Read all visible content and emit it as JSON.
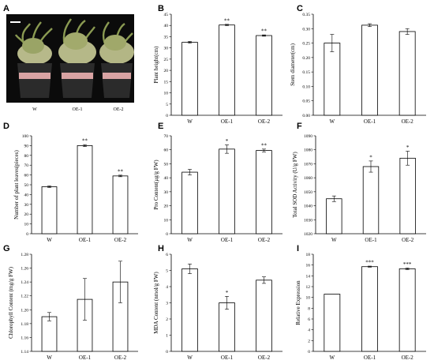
{
  "photo_panel": {
    "label": "A",
    "pots": [
      "W",
      "OE-1",
      "OE-2"
    ]
  },
  "chart_data": [
    {
      "panel": "B",
      "type": "bar",
      "categories": [
        "W",
        "OE-1",
        "OE-2"
      ],
      "values": [
        32.5,
        40.2,
        35.5
      ],
      "errors": [
        0.4,
        0.3,
        0.3
      ],
      "annotations": [
        "",
        "**",
        "**"
      ],
      "ylabel": "Plant height(cm)",
      "ylim": [
        0,
        45
      ],
      "yticks": [
        0,
        5,
        10,
        15,
        20,
        25,
        30,
        35,
        40,
        45
      ],
      "tick_decimals": 0
    },
    {
      "panel": "C",
      "type": "bar",
      "categories": [
        "W",
        "OE-1",
        "OE-2"
      ],
      "values": [
        0.25,
        0.312,
        0.29
      ],
      "errors": [
        0.03,
        0.005,
        0.01
      ],
      "annotations": [
        "",
        "",
        ""
      ],
      "ylabel": "Stem diameter(cm)",
      "ylim": [
        0,
        0.35
      ],
      "yticks": [
        0,
        0.05,
        0.1,
        0.15,
        0.2,
        0.25,
        0.3,
        0.35
      ],
      "tick_decimals": 2
    },
    {
      "panel": "D",
      "type": "bar",
      "categories": [
        "W",
        "OE-1",
        "OE-2"
      ],
      "values": [
        48,
        90,
        59
      ],
      "errors": [
        0.8,
        1.0,
        0.8
      ],
      "annotations": [
        "",
        "**",
        "**"
      ],
      "ylabel": "Number of plant leaves(pieces)",
      "ylim": [
        0,
        100
      ],
      "yticks": [
        0,
        10,
        20,
        30,
        40,
        50,
        60,
        70,
        80,
        90,
        100
      ],
      "tick_decimals": 0
    },
    {
      "panel": "E",
      "type": "bar",
      "categories": [
        "W",
        "OE-1",
        "OE-2"
      ],
      "values": [
        44,
        60.5,
        59.5
      ],
      "errors": [
        2,
        3,
        1
      ],
      "annotations": [
        "",
        "*",
        "**"
      ],
      "ylabel": "Pro Content(μg/g FW)",
      "ylim": [
        0,
        70
      ],
      "yticks": [
        0,
        10,
        20,
        30,
        40,
        50,
        60,
        70
      ],
      "tick_decimals": 0
    },
    {
      "panel": "F",
      "type": "bar",
      "categories": [
        "W",
        "OE-1",
        "OE-2"
      ],
      "values": [
        1045,
        1068,
        1074
      ],
      "errors": [
        2,
        4,
        5
      ],
      "annotations": [
        "",
        "*",
        "*"
      ],
      "ylabel": "Total SOD Activity (U/g FW)",
      "ylim": [
        1020,
        1090
      ],
      "yticks": [
        1020,
        1030,
        1040,
        1050,
        1060,
        1070,
        1080,
        1090
      ],
      "tick_decimals": 0
    },
    {
      "panel": "G",
      "type": "bar",
      "categories": [
        "W",
        "OE-1",
        "OE-2"
      ],
      "values": [
        1.19,
        1.215,
        1.24
      ],
      "errors": [
        0.006,
        0.03,
        0.03
      ],
      "annotations": [
        "",
        "",
        ""
      ],
      "ylabel": "Chlorophyll Content (mg/g FW)",
      "ylim": [
        1.14,
        1.28
      ],
      "yticks": [
        1.14,
        1.16,
        1.18,
        1.2,
        1.22,
        1.24,
        1.26,
        1.28
      ],
      "tick_decimals": 2
    },
    {
      "panel": "H",
      "type": "bar",
      "categories": [
        "W",
        "OE-1",
        "OE-2"
      ],
      "values": [
        5.1,
        3.0,
        4.4
      ],
      "errors": [
        0.3,
        0.4,
        0.2
      ],
      "annotations": [
        "",
        "*",
        ""
      ],
      "ylabel": "MDA Content (nmol/g FW)",
      "ylim": [
        0,
        6
      ],
      "yticks": [
        0,
        1,
        2,
        3,
        4,
        5,
        6
      ],
      "tick_decimals": 0
    },
    {
      "panel": "I",
      "type": "bar",
      "categories": [
        "W",
        "OE-1",
        "OE-2"
      ],
      "values": [
        10.6,
        15.7,
        15.3
      ],
      "errors": [
        0,
        0.1,
        0.15
      ],
      "annotations": [
        "",
        "***",
        "***"
      ],
      "ylabel": "Relative Expression",
      "ylim": [
        0,
        18
      ],
      "yticks": [
        0,
        2,
        4,
        6,
        8,
        10,
        12,
        14,
        16,
        18
      ],
      "tick_decimals": 0
    }
  ]
}
